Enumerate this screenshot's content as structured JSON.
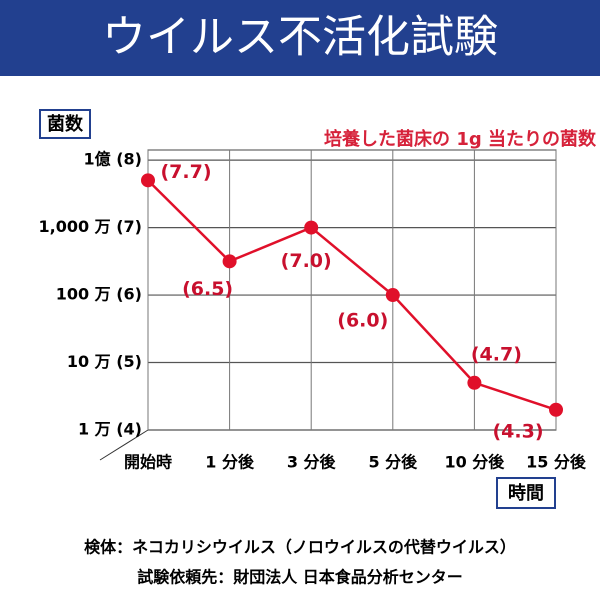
{
  "chart_data": {
    "type": "line",
    "title": "ウイルス不活化試験",
    "y_label": "菌数",
    "x_label": "時間",
    "annotation": "培養した菌床の 1g 当たりの菌数",
    "categories": [
      "開始時",
      "1 分後",
      "3 分後",
      "5 分後",
      "10 分後",
      "15 分後"
    ],
    "values": [
      7.7,
      6.5,
      7.0,
      6.0,
      4.7,
      4.3
    ],
    "value_labels": [
      "(7.7)",
      "(6.5)",
      "(7.0)",
      "(6.0)",
      "(4.7)",
      "(4.3)"
    ],
    "color": "#e0102a",
    "ylim": [
      4,
      8.15
    ],
    "yticks": [
      {
        "value": 8,
        "label": "1億 (8)"
      },
      {
        "value": 7,
        "label": "1,000 万 (7)"
      },
      {
        "value": 6,
        "label": "100 万 (6)"
      },
      {
        "value": 5,
        "label": "10 万 (5)"
      },
      {
        "value": 4,
        "label": "1 万 (4)"
      }
    ],
    "grid": true,
    "notes": [
      "検体：ネコカリシウイルス（ノロウイルスの代替ウイルス）",
      "試験依頼先：財団法人 日本食品分析センター"
    ]
  }
}
